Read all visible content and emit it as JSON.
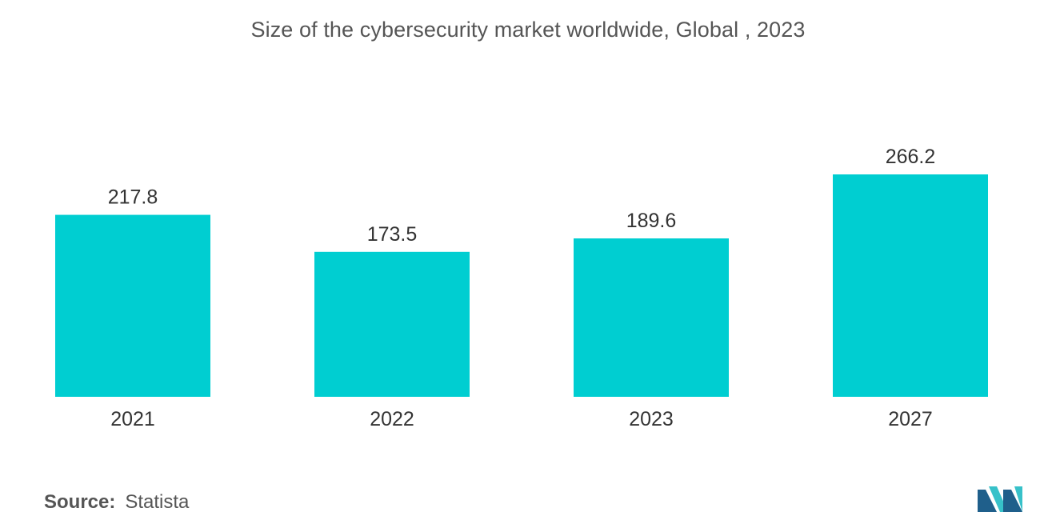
{
  "chart_data": {
    "type": "bar",
    "title": "Size of the cybersecurity market worldwide, Global , 2023",
    "categories": [
      "2021",
      "2022",
      "2023",
      "2027"
    ],
    "values": [
      217.8,
      173.5,
      189.6,
      266.2
    ],
    "value_labels": [
      "217.8",
      "173.5",
      "189.6",
      "266.2"
    ],
    "xlabel": "",
    "ylabel": "",
    "y_axis_visible": false,
    "grid": false,
    "legend": "none"
  },
  "colors": {
    "bar": "#00CED1",
    "text": "#333333",
    "logo_dark": "#1f5f8b",
    "logo_light": "#37c1c9"
  },
  "source": {
    "label": "Source:",
    "value": "Statista"
  },
  "logo": {
    "name": "mordor-intelligence-logo-icon"
  }
}
